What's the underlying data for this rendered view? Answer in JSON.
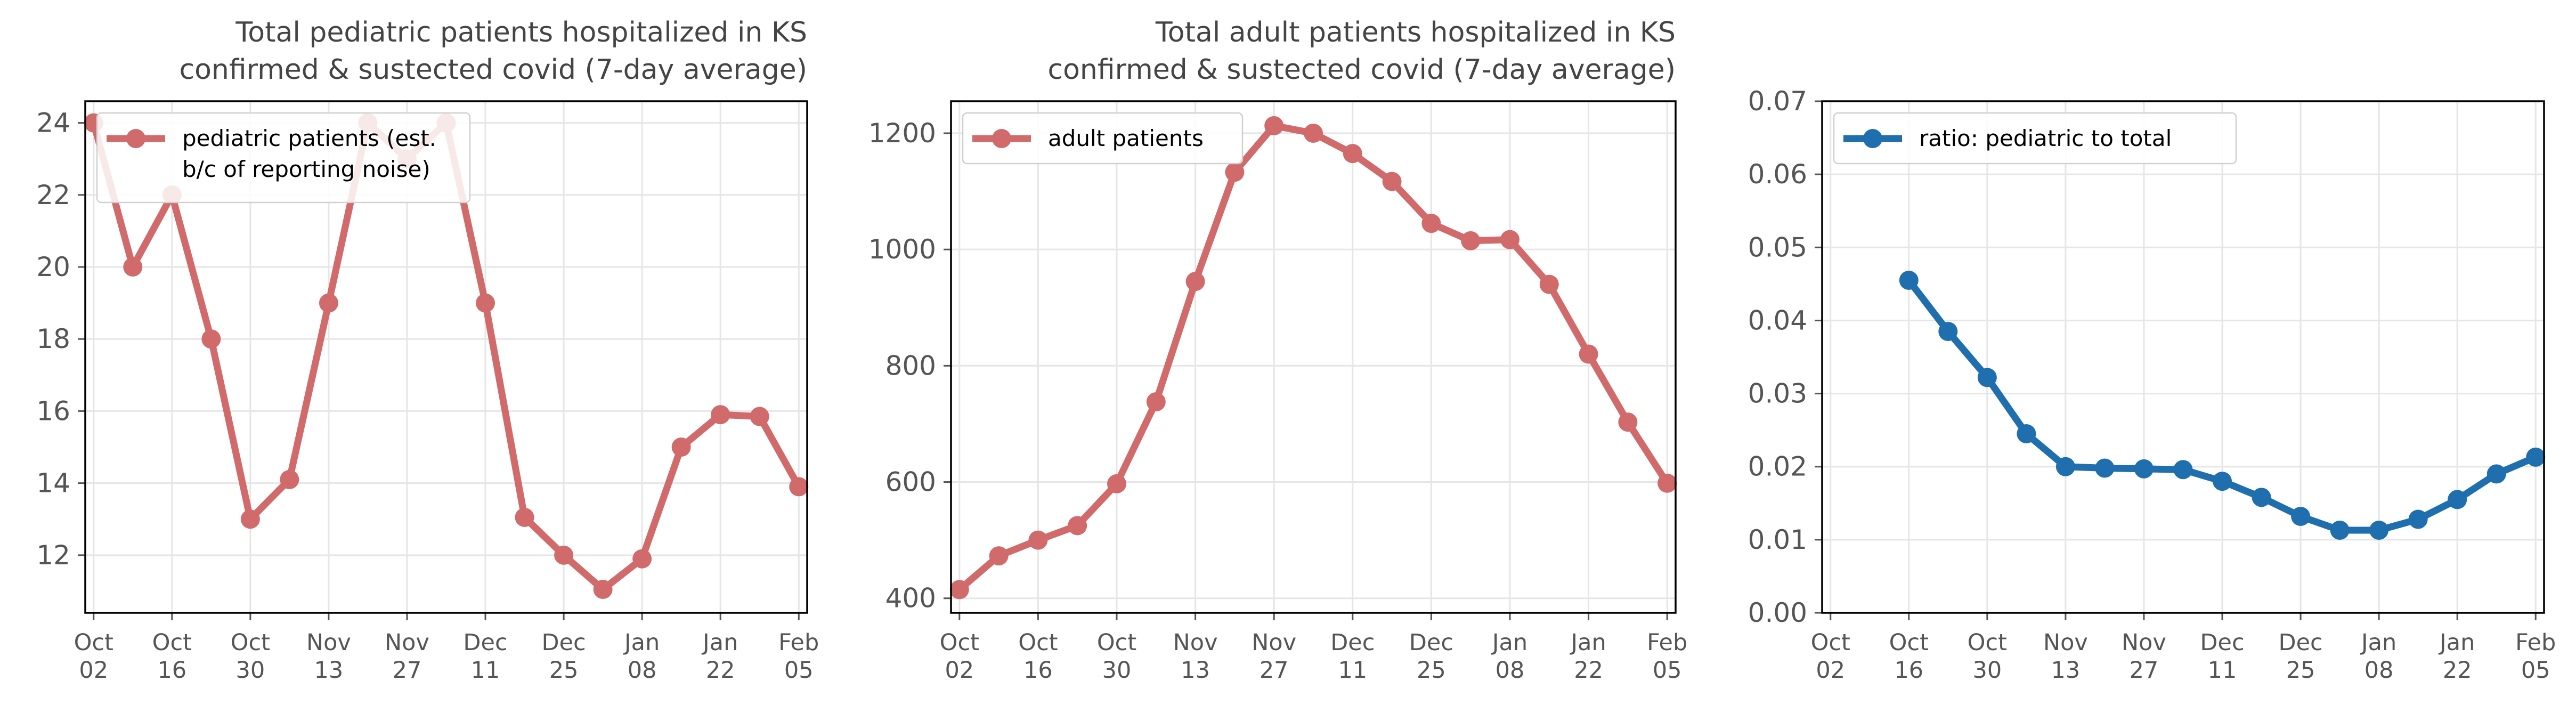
{
  "chart_data": [
    {
      "type": "line",
      "title": "Total pediatric patients hospitalized in KS\nconfirmed & sustected covid (7-day average)",
      "x": [
        "2020-10-02",
        "2020-10-09",
        "2020-10-16",
        "2020-10-23",
        "2020-10-30",
        "2020-11-06",
        "2020-11-13",
        "2020-11-20",
        "2020-11-27",
        "2020-12-04",
        "2020-12-11",
        "2020-12-18",
        "2020-12-25",
        "2021-01-01",
        "2021-01-08",
        "2021-01-15",
        "2021-01-22",
        "2021-01-29",
        "2021-02-05"
      ],
      "x_tick_labels": [
        [
          "Oct",
          "02"
        ],
        [
          "Oct",
          "16"
        ],
        [
          "Oct",
          "30"
        ],
        [
          "Nov",
          "13"
        ],
        [
          "Nov",
          "27"
        ],
        [
          "Dec",
          "11"
        ],
        [
          "Dec",
          "25"
        ],
        [
          "Jan",
          "08"
        ],
        [
          "Jan",
          "22"
        ],
        [
          "Feb",
          "05"
        ]
      ],
      "series": [
        {
          "name": "pediatric patients (est.\nb/c of reporting noise)",
          "color": "#d16b6b",
          "values": [
            24,
            20,
            22,
            18,
            13,
            14.1,
            19,
            24,
            23,
            24,
            19,
            13.05,
            12,
            11.05,
            11.9,
            15,
            15.9,
            15.85,
            13.9
          ]
        }
      ],
      "xlabel": "",
      "ylabel": "",
      "ylim": [
        10.4,
        24.6
      ],
      "yticks": [
        "12",
        "14",
        "16",
        "18",
        "20",
        "22",
        "24"
      ],
      "grid": true,
      "legend": "top-left"
    },
    {
      "type": "line",
      "title": "Total adult patients hospitalized in KS\nconfirmed & sustected covid (7-day average)",
      "x": [
        "2020-10-02",
        "2020-10-09",
        "2020-10-16",
        "2020-10-23",
        "2020-10-30",
        "2020-11-06",
        "2020-11-13",
        "2020-11-20",
        "2020-11-27",
        "2020-12-04",
        "2020-12-11",
        "2020-12-18",
        "2020-12-25",
        "2021-01-01",
        "2021-01-08",
        "2021-01-15",
        "2021-01-22",
        "2021-01-29",
        "2021-02-05"
      ],
      "x_tick_labels": [
        [
          "Oct",
          "02"
        ],
        [
          "Oct",
          "16"
        ],
        [
          "Oct",
          "30"
        ],
        [
          "Nov",
          "13"
        ],
        [
          "Nov",
          "27"
        ],
        [
          "Dec",
          "11"
        ],
        [
          "Dec",
          "25"
        ],
        [
          "Jan",
          "08"
        ],
        [
          "Jan",
          "22"
        ],
        [
          "Feb",
          "05"
        ]
      ],
      "series": [
        {
          "name": "adult patients",
          "color": "#d16b6b",
          "values": [
            415,
            473,
            500,
            525,
            597,
            738,
            945,
            1133,
            1213,
            1200,
            1165,
            1117,
            1045,
            1015,
            1017,
            940,
            820,
            703,
            598
          ]
        }
      ],
      "xlabel": "",
      "ylabel": "",
      "ylim": [
        375,
        1255
      ],
      "yticks": [
        "400",
        "600",
        "800",
        "1000",
        "1200"
      ],
      "grid": true,
      "legend": "top-left"
    },
    {
      "type": "line",
      "title": "",
      "x": [
        "2020-10-16",
        "2020-10-23",
        "2020-10-30",
        "2020-11-06",
        "2020-11-13",
        "2020-11-20",
        "2020-11-27",
        "2020-12-04",
        "2020-12-11",
        "2020-12-18",
        "2020-12-25",
        "2021-01-01",
        "2021-01-08",
        "2021-01-15",
        "2021-01-22",
        "2021-01-29",
        "2021-02-05"
      ],
      "x_tick_labels": [
        [
          "Oct",
          "02"
        ],
        [
          "Oct",
          "16"
        ],
        [
          "Oct",
          "30"
        ],
        [
          "Nov",
          "13"
        ],
        [
          "Nov",
          "27"
        ],
        [
          "Dec",
          "11"
        ],
        [
          "Dec",
          "25"
        ],
        [
          "Jan",
          "08"
        ],
        [
          "Jan",
          "22"
        ],
        [
          "Feb",
          "05"
        ]
      ],
      "series": [
        {
          "name": "ratio: pediatric to total",
          "color": "#1f6fae",
          "values": [
            0.0455,
            0.0385,
            0.0322,
            0.0245,
            0.02,
            0.0198,
            0.0197,
            0.0196,
            0.018,
            0.0158,
            0.0132,
            0.0113,
            0.0113,
            0.0128,
            0.0155,
            0.019,
            0.0213
          ]
        }
      ],
      "xlabel": "",
      "ylabel": "",
      "ylim": [
        0,
        0.07
      ],
      "yticks": [
        "0.00",
        "0.01",
        "0.02",
        "0.03",
        "0.04",
        "0.05",
        "0.06",
        "0.07"
      ],
      "grid": true,
      "legend": "top-left"
    }
  ]
}
